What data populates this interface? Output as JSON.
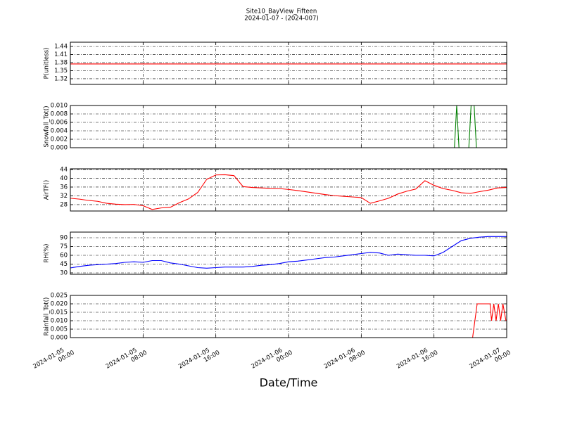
{
  "title": "Site10_BayView_Fifteen",
  "subtitle": "2024-01-07 - (2024-007)",
  "xlabel": "Date/Time",
  "chart_data": [
    {
      "type": "line",
      "ylabel": "P(unitless)",
      "color": "#ff0000",
      "grid": true,
      "x": [
        "2024-01-05 00:00",
        "2024-01-07 00:00"
      ],
      "values": [
        1.375,
        1.375
      ],
      "xlim": [
        "2024-01-05 00:00",
        "2024-01-07 00:00"
      ],
      "xticks": [
        "2024-01-05 00:00",
        "2024-01-05 08:00",
        "2024-01-05 16:00",
        "2024-01-06 00:00",
        "2024-01-06 08:00",
        "2024-01-06 16:00",
        "2024-01-07 00:00"
      ],
      "ylim": [
        1.299,
        1.456
      ],
      "yticks": [
        1.32,
        1.35,
        1.38,
        1.41,
        1.44
      ]
    },
    {
      "type": "line",
      "ylabel": "Snowfall_Tot()",
      "color": "#007f00",
      "grid": true,
      "x": [
        "2024-01-05 00:00",
        "2024-01-06 18:15",
        "2024-01-06 18:30",
        "2024-01-06 18:45",
        "2024-01-06 19:50",
        "2024-01-06 20:05",
        "2024-01-06 20:25",
        "2024-01-06 20:40",
        "2024-01-07 00:00"
      ],
      "values": [
        0,
        0,
        0.01,
        0,
        0,
        0.01,
        0.01,
        0,
        0
      ],
      "xlim": [
        "2024-01-05 00:00",
        "2024-01-07 00:00"
      ],
      "xticks": [
        "2024-01-05 00:00",
        "2024-01-05 08:00",
        "2024-01-05 16:00",
        "2024-01-06 00:00",
        "2024-01-06 08:00",
        "2024-01-06 16:00",
        "2024-01-07 00:00"
      ],
      "ylim": [
        0,
        0.01
      ],
      "yticks": [
        {
          "value": 0,
          "label": "0.000"
        },
        {
          "value": 0.002,
          "label": "0.002"
        },
        {
          "value": 0.004,
          "label": "0.004"
        },
        {
          "value": 0.006,
          "label": "0.006"
        },
        {
          "value": 0.008,
          "label": "0.008"
        },
        {
          "value": 0.01,
          "label": "0.010"
        }
      ]
    },
    {
      "type": "line",
      "ylabel": "AirTF()",
      "color": "#ff0000",
      "grid": true,
      "x": [
        "2024-01-05 00:00",
        "2024-01-05 01:00",
        "2024-01-05 02:00",
        "2024-01-05 03:00",
        "2024-01-05 04:00",
        "2024-01-05 05:00",
        "2024-01-05 06:00",
        "2024-01-05 07:00",
        "2024-01-05 08:00",
        "2024-01-05 09:00",
        "2024-01-05 10:00",
        "2024-01-05 11:00",
        "2024-01-05 12:00",
        "2024-01-05 13:00",
        "2024-01-05 14:00",
        "2024-01-05 15:00",
        "2024-01-05 16:00",
        "2024-01-05 17:00",
        "2024-01-05 18:00",
        "2024-01-05 19:00",
        "2024-01-05 20:00",
        "2024-01-05 21:00",
        "2024-01-05 22:00",
        "2024-01-05 23:00",
        "2024-01-06 00:00",
        "2024-01-06 01:00",
        "2024-01-06 02:00",
        "2024-01-06 03:00",
        "2024-01-06 04:00",
        "2024-01-06 05:00",
        "2024-01-06 06:00",
        "2024-01-06 07:00",
        "2024-01-06 08:00",
        "2024-01-06 09:00",
        "2024-01-06 10:00",
        "2024-01-06 11:00",
        "2024-01-06 12:00",
        "2024-01-06 13:00",
        "2024-01-06 14:00",
        "2024-01-06 15:00",
        "2024-01-06 16:00",
        "2024-01-06 17:00",
        "2024-01-06 18:00",
        "2024-01-06 19:00",
        "2024-01-06 20:00",
        "2024-01-06 21:00",
        "2024-01-06 22:00",
        "2024-01-06 23:00",
        "2024-01-07 00:00"
      ],
      "values": [
        30.9,
        30.5,
        29.9,
        29.5,
        28.6,
        28.2,
        28,
        28.1,
        27.5,
        25.8,
        26.5,
        26.8,
        28.9,
        30.6,
        33.5,
        39.5,
        41.5,
        41.6,
        41.2,
        36.2,
        35.8,
        35.6,
        35.4,
        35.3,
        34.9,
        34.4,
        33.8,
        33.2,
        32.6,
        32.1,
        31.8,
        31.5,
        31.2,
        28.6,
        29.7,
        30.9,
        32.8,
        34.1,
        35.1,
        38.9,
        36.8,
        35.3,
        34.5,
        33.4,
        33.1,
        33.9,
        34.6,
        35.6,
        35.8
      ],
      "xlim": [
        "2024-01-05 00:00",
        "2024-01-07 00:00"
      ],
      "xticks": [
        "2024-01-05 00:00",
        "2024-01-05 08:00",
        "2024-01-05 16:00",
        "2024-01-06 00:00",
        "2024-01-06 08:00",
        "2024-01-06 16:00",
        "2024-01-07 00:00"
      ],
      "ylim": [
        25.1,
        44.3
      ],
      "yticks": [
        28,
        32,
        36,
        40,
        44
      ]
    },
    {
      "type": "line",
      "ylabel": "RH(%)",
      "color": "#0000ff",
      "grid": true,
      "x": [
        "2024-01-05 00:00",
        "2024-01-05 01:00",
        "2024-01-05 02:00",
        "2024-01-05 03:00",
        "2024-01-05 04:00",
        "2024-01-05 05:00",
        "2024-01-05 06:00",
        "2024-01-05 07:00",
        "2024-01-05 08:00",
        "2024-01-05 09:00",
        "2024-01-05 10:00",
        "2024-01-05 11:00",
        "2024-01-05 12:00",
        "2024-01-05 13:00",
        "2024-01-05 14:00",
        "2024-01-05 15:00",
        "2024-01-05 16:00",
        "2024-01-05 17:00",
        "2024-01-05 18:00",
        "2024-01-05 19:00",
        "2024-01-05 20:00",
        "2024-01-05 21:00",
        "2024-01-05 22:00",
        "2024-01-05 23:00",
        "2024-01-06 00:00",
        "2024-01-06 01:00",
        "2024-01-06 02:00",
        "2024-01-06 03:00",
        "2024-01-06 04:00",
        "2024-01-06 05:00",
        "2024-01-06 06:00",
        "2024-01-06 07:00",
        "2024-01-06 08:00",
        "2024-01-06 09:00",
        "2024-01-06 10:00",
        "2024-01-06 11:00",
        "2024-01-06 12:00",
        "2024-01-06 13:00",
        "2024-01-06 14:00",
        "2024-01-06 15:00",
        "2024-01-06 16:00",
        "2024-01-06 17:00",
        "2024-01-06 18:00",
        "2024-01-06 19:00",
        "2024-01-06 20:00",
        "2024-01-06 21:00",
        "2024-01-06 22:00",
        "2024-01-06 23:00",
        "2024-01-07 00:00"
      ],
      "values": [
        38.5,
        41,
        43,
        44,
        45,
        46,
        48,
        49,
        48,
        51,
        51,
        47,
        45,
        42,
        39,
        38,
        39,
        40,
        40,
        40,
        41,
        43,
        44,
        46,
        49,
        50,
        52,
        54,
        56,
        57,
        59,
        61,
        63,
        65,
        64,
        60,
        62,
        61,
        60,
        60,
        59,
        65,
        75,
        85,
        89,
        91,
        92,
        92,
        92
      ],
      "xlim": [
        "2024-01-05 00:00",
        "2024-01-07 00:00"
      ],
      "xticks": [
        "2024-01-05 00:00",
        "2024-01-05 08:00",
        "2024-01-05 16:00",
        "2024-01-06 00:00",
        "2024-01-06 08:00",
        "2024-01-06 16:00",
        "2024-01-07 00:00"
      ],
      "ylim": [
        27.6,
        99.6
      ],
      "yticks": [
        30,
        45,
        60,
        75,
        90
      ]
    },
    {
      "type": "line",
      "ylabel": "Rainfall_Tot()",
      "color": "#ff0000",
      "grid": true,
      "x": [
        "2024-01-05 00:00",
        "2024-01-06 20:15",
        "2024-01-06 20:45",
        "2024-01-06 22:10",
        "2024-01-06 22:20",
        "2024-01-06 22:35",
        "2024-01-06 22:50",
        "2024-01-06 23:05",
        "2024-01-06 23:20",
        "2024-01-06 23:35",
        "2024-01-06 23:55"
      ],
      "values": [
        0,
        0,
        0.02,
        0.02,
        0.01,
        0.02,
        0.01,
        0.02,
        0.01,
        0.02,
        0.01
      ],
      "xlim": [
        "2024-01-05 00:00",
        "2024-01-07 00:00"
      ],
      "xticks": [
        "2024-01-05 00:00",
        "2024-01-05 08:00",
        "2024-01-05 16:00",
        "2024-01-06 00:00",
        "2024-01-06 08:00",
        "2024-01-06 16:00",
        "2024-01-07 00:00"
      ],
      "ylim": [
        0,
        0.025
      ],
      "yticks": [
        {
          "value": 0,
          "label": "0.000"
        },
        {
          "value": 0.005,
          "label": "0.005"
        },
        {
          "value": 0.01,
          "label": "0.010"
        },
        {
          "value": 0.015,
          "label": "0.015"
        },
        {
          "value": 0.02,
          "label": "0.020"
        },
        {
          "value": 0.025,
          "label": "0.025"
        }
      ]
    }
  ]
}
